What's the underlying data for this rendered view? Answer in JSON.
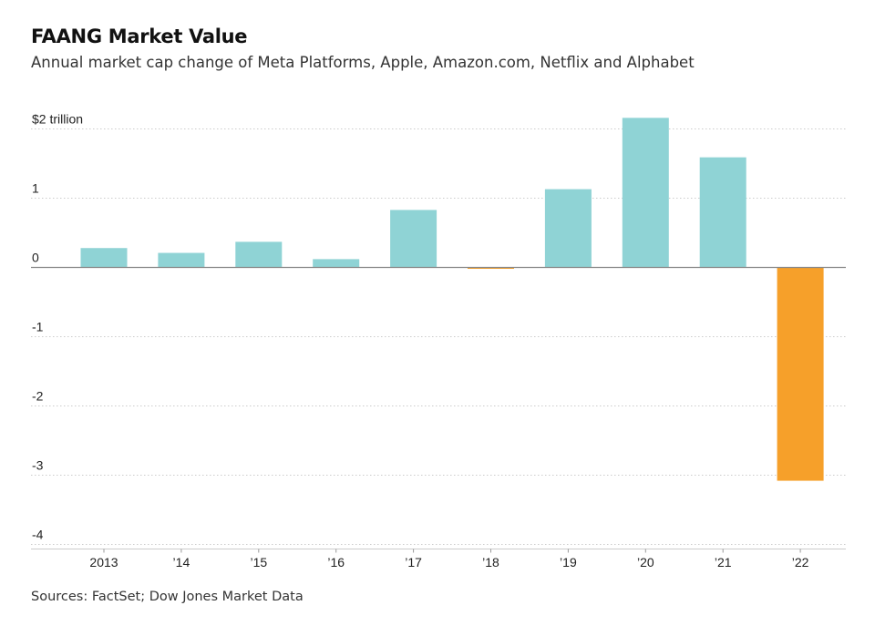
{
  "chart_data": {
    "type": "bar",
    "title": "FAANG Market Value",
    "subtitle": "Annual market cap change of Meta Platforms, Apple, Amazon.com, Netflix and Alphabet",
    "source": "Sources: FactSet; Dow Jones Market Data",
    "categories": [
      "2013",
      "’14",
      "’15",
      "’16",
      "’17",
      "’18",
      "’19",
      "’20",
      "’21",
      "’22"
    ],
    "values": [
      0.28,
      0.21,
      0.37,
      0.12,
      0.83,
      -0.02,
      1.13,
      2.16,
      1.59,
      -3.08
    ],
    "y_ticks": [
      {
        "value": 2,
        "label": "$2 trillion"
      },
      {
        "value": 1,
        "label": "1"
      },
      {
        "value": 0,
        "label": "0"
      },
      {
        "value": -1,
        "label": "-1"
      },
      {
        "value": -2,
        "label": "-2"
      },
      {
        "value": -3,
        "label": "-3"
      },
      {
        "value": -4,
        "label": "-4"
      }
    ],
    "ylim": [
      -4,
      2.2
    ],
    "xlabel": "",
    "ylabel": "",
    "grid": true,
    "colors": {
      "positive": "#8fd3d5",
      "negative": "#f6a02a",
      "grid": "#cccccc",
      "zero_line": "#888888"
    }
  }
}
